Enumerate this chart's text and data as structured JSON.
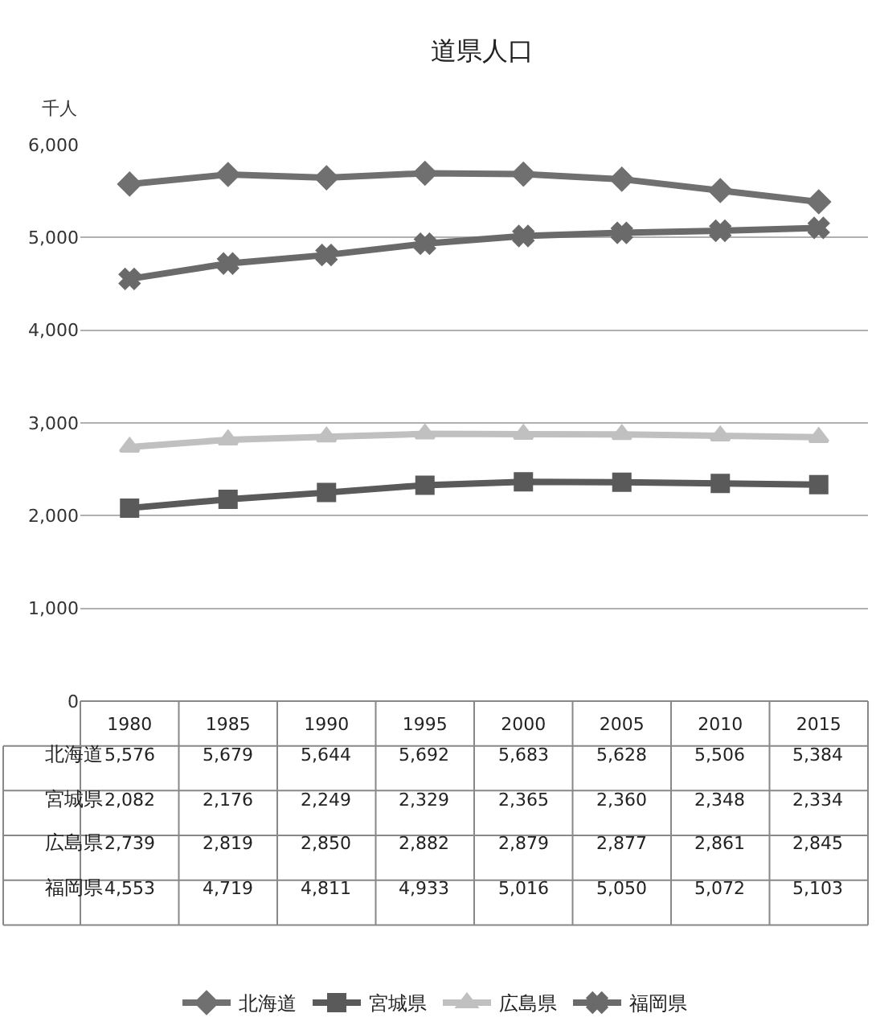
{
  "chart_data": {
    "type": "line",
    "title": "道県人口",
    "ylabel": "千人",
    "categories": [
      "1980",
      "1985",
      "1990",
      "1995",
      "2000",
      "2005",
      "2010",
      "2015"
    ],
    "series": [
      {
        "name": "北海道",
        "color": "#707070",
        "marker": "diamond",
        "values": [
          5576,
          5679,
          5644,
          5692,
          5683,
          5628,
          5506,
          5384
        ],
        "value_labels": [
          "5,576",
          "5,679",
          "5,644",
          "5,692",
          "5,683",
          "5,628",
          "5,506",
          "5,384"
        ]
      },
      {
        "name": "宮城県",
        "color": "#5a5a5a",
        "marker": "square",
        "values": [
          2082,
          2176,
          2249,
          2329,
          2365,
          2360,
          2348,
          2334
        ],
        "value_labels": [
          "2,082",
          "2,176",
          "2,249",
          "2,329",
          "2,365",
          "2,360",
          "2,348",
          "2,334"
        ]
      },
      {
        "name": "広島県",
        "color": "#c0c0c0",
        "marker": "triangle",
        "values": [
          2739,
          2819,
          2850,
          2882,
          2879,
          2877,
          2861,
          2845
        ],
        "value_labels": [
          "2,739",
          "2,819",
          "2,850",
          "2,882",
          "2,879",
          "2,877",
          "2,861",
          "2,845"
        ]
      },
      {
        "name": "福岡県",
        "color": "#6a6a6a",
        "marker": "cross",
        "values": [
          4553,
          4719,
          4811,
          4933,
          5016,
          5050,
          5072,
          5103
        ],
        "value_labels": [
          "4,553",
          "4,719",
          "4,811",
          "4,933",
          "5,016",
          "5,050",
          "5,072",
          "5,103"
        ]
      }
    ],
    "ylim": [
      0,
      6000
    ],
    "yticks": [
      0,
      {
        "value": 1000,
        "label": "1,000"
      },
      {
        "value": 2000,
        "label": "2,000"
      },
      {
        "value": 3000,
        "label": "3,000"
      },
      {
        "value": 4000,
        "label": "4,000"
      },
      {
        "value": 5000,
        "label": "5,000"
      },
      {
        "value": 6000,
        "label": "6,000"
      }
    ],
    "grid": "y",
    "legend": "bottom",
    "line_style": "solid"
  }
}
